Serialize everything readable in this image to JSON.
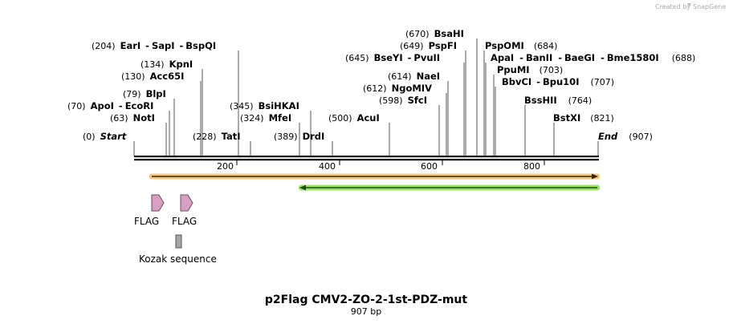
{
  "watermark": {
    "prefix": "Created by",
    "brand": "SnapGene"
  },
  "map": {
    "name": "p2Flag CMV2-ZO-2-1st-PDZ-mut",
    "length_label": "907 bp",
    "length": 907,
    "ticks": [
      "200",
      "400",
      "600",
      "800"
    ]
  },
  "enzymes": [
    {
      "num": "(0)",
      "label": "Start",
      "pos": 0,
      "italic": true
    },
    {
      "num": "(907)",
      "label": "End",
      "pos": 907,
      "italic": true
    },
    {
      "num": "(63)",
      "label": "NotI",
      "pos": 63
    },
    {
      "num": "(70)",
      "label": "ApoI",
      "sep": "-",
      "label2": "EcoRI",
      "pos": 70
    },
    {
      "num": "(79)",
      "label": "BlpI",
      "pos": 79
    },
    {
      "num": "(130)",
      "label": "Acc65I",
      "pos": 130
    },
    {
      "num": "(134)",
      "label": "KpnI",
      "pos": 134
    },
    {
      "num": "(204)",
      "label": "EarI",
      "sep": "-",
      "label2": "SapI",
      "sep2": "-",
      "label3": "BspQI",
      "pos": 204
    },
    {
      "num": "(228)",
      "label": "TatI",
      "pos": 228
    },
    {
      "num": "(324)",
      "label": "MfeI",
      "pos": 324
    },
    {
      "num": "(345)",
      "label": "BsiHKAI",
      "pos": 345
    },
    {
      "num": "(389)",
      "label": "DrdI",
      "pos": 389
    },
    {
      "num": "(500)",
      "label": "AcuI",
      "pos": 500
    },
    {
      "num": "(598)",
      "label": "SfcI",
      "pos": 598
    },
    {
      "num": "(612)",
      "label": "NgoMIV",
      "pos": 612
    },
    {
      "num": "(614)",
      "label": "NaeI",
      "pos": 614
    },
    {
      "num": "(645)",
      "label": "BseYI",
      "sep": "-",
      "label2": "PvuII",
      "pos": 645
    },
    {
      "num": "(649)",
      "label": "PspFI",
      "pos": 649
    },
    {
      "num": "(670)",
      "label": "BsaHI",
      "pos": 670
    },
    {
      "num": "(684)",
      "label": "PspOMI",
      "pos": 684
    },
    {
      "num": "(688)",
      "label": "ApaI",
      "sep": "-",
      "label2": "BanII",
      "sep2": "-",
      "label3": "BaeGI",
      "sep3": "-",
      "label4": "Bme1580I",
      "pos": 688
    },
    {
      "num": "(703)",
      "label": "PpuMI",
      "pos": 703
    },
    {
      "num": "(707)",
      "label": "BbvCI",
      "sep": "-",
      "label2": "Bpu10I",
      "pos": 707
    },
    {
      "num": "(764)",
      "label": "BssHII",
      "pos": 764
    },
    {
      "num": "(821)",
      "label": "BstXI",
      "pos": 821
    }
  ],
  "features": [
    {
      "label": "FLAG",
      "kind": "flag"
    },
    {
      "label": "FLAG",
      "kind": "flag"
    },
    {
      "label": "Kozak sequence",
      "kind": "kozak"
    }
  ],
  "colors": {
    "orf_forward": "#f5c77e",
    "orf_reverse": "#9ee16b",
    "flag_feature": "#d7a0c0",
    "kozak_feature": "#a6a6a6"
  }
}
